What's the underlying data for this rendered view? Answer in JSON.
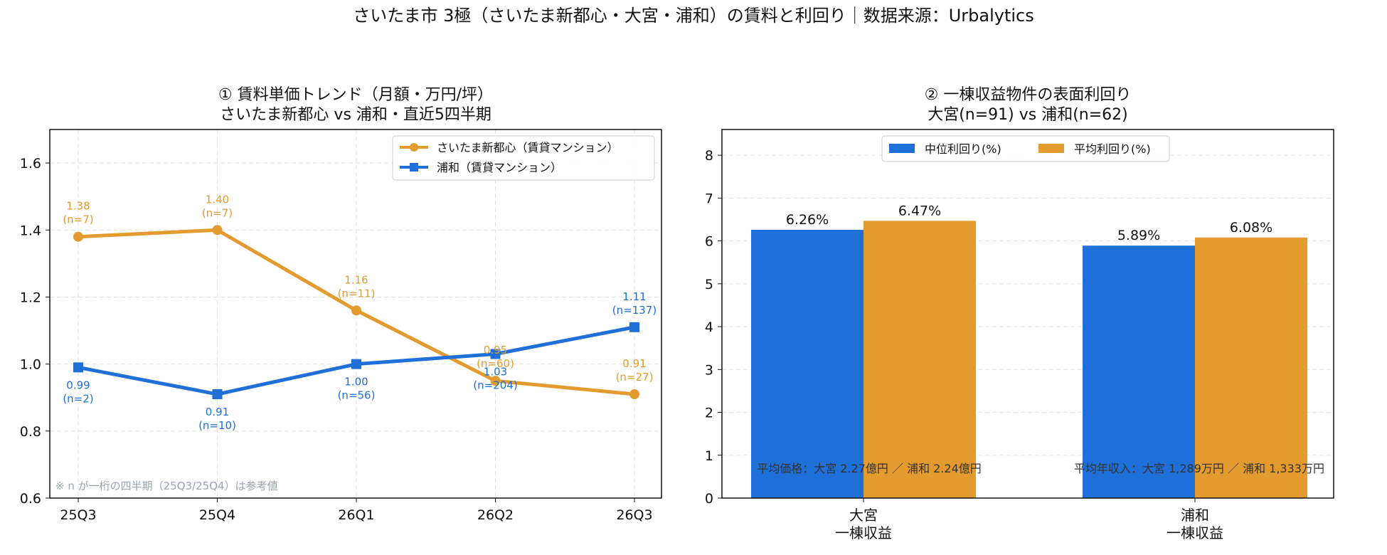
{
  "figure": {
    "suptitle": "さいたま市 3極（さいたま新都心・大宮・浦和）の賃料と利回り｜数据来源：Urbalytics"
  },
  "colors": {
    "orange": "#E39A2E",
    "blue": "#1F6FD9",
    "grid": "#E3E3E3",
    "note": "#9AA3AE",
    "annotation": "#333333"
  },
  "chart_data": [
    {
      "type": "line",
      "title_line1": "① 賃料単価トレンド（月額・万円/坪）",
      "title_line2": "さいたま新都心 vs 浦和・直近5四半期",
      "categories": [
        "25Q3",
        "25Q4",
        "26Q1",
        "26Q2",
        "26Q3"
      ],
      "ylim": [
        0.6,
        1.7
      ],
      "yticks": [
        "0.6",
        "0.8",
        "1.0",
        "1.2",
        "1.4",
        "1.6"
      ],
      "grid": true,
      "legend": "top-right",
      "series": [
        {
          "name": "さいたま新都心（賃貸マンション）",
          "color": "orange",
          "marker": "circle",
          "values": [
            1.38,
            1.4,
            1.16,
            0.95,
            0.91
          ],
          "value_labels": [
            "1.38",
            "1.40",
            "1.16",
            "0.95",
            "0.91"
          ],
          "n_labels": [
            "(n=7)",
            "(n=7)",
            "(n=11)",
            "(n=60)",
            "(n=27)"
          ]
        },
        {
          "name": "浦和（賃貸マンション）",
          "color": "blue",
          "marker": "square",
          "values": [
            0.99,
            0.91,
            1.0,
            1.03,
            1.11
          ],
          "value_labels": [
            "0.99",
            "0.91",
            "1.00",
            "1.03",
            "1.11"
          ],
          "n_labels": [
            "(n=2)",
            "(n=10)",
            "(n=56)",
            "(n=204)",
            "(n=137)"
          ]
        }
      ],
      "note": "※ n が一桁の四半期（25Q3/25Q4）は参考値"
    },
    {
      "type": "bar",
      "title_line1": "② 一棟収益物件の表面利回り",
      "title_line2": "大宮(n=91) vs 浦和(n=62)",
      "categories": [
        [
          "大宮",
          "一棟収益"
        ],
        [
          "浦和",
          "一棟収益"
        ]
      ],
      "ylim": [
        0,
        8.6
      ],
      "yticks": [
        "0",
        "1",
        "2",
        "3",
        "4",
        "5",
        "6",
        "7",
        "8"
      ],
      "grid": true,
      "legend": "top-center",
      "series": [
        {
          "name": "中位利回り(%)",
          "color": "blue",
          "values": [
            6.26,
            5.89
          ],
          "value_labels": [
            "6.26%",
            "5.89%"
          ]
        },
        {
          "name": "平均利回り(%)",
          "color": "orange",
          "values": [
            6.47,
            6.08
          ],
          "value_labels": [
            "6.47%",
            "6.08%"
          ]
        }
      ],
      "annotations": [
        "平均価格：大宮 2.27億円 ／ 浦和 2.24億円",
        "平均年収入：大宮 1,289万円 ／ 浦和 1,333万円"
      ]
    }
  ]
}
